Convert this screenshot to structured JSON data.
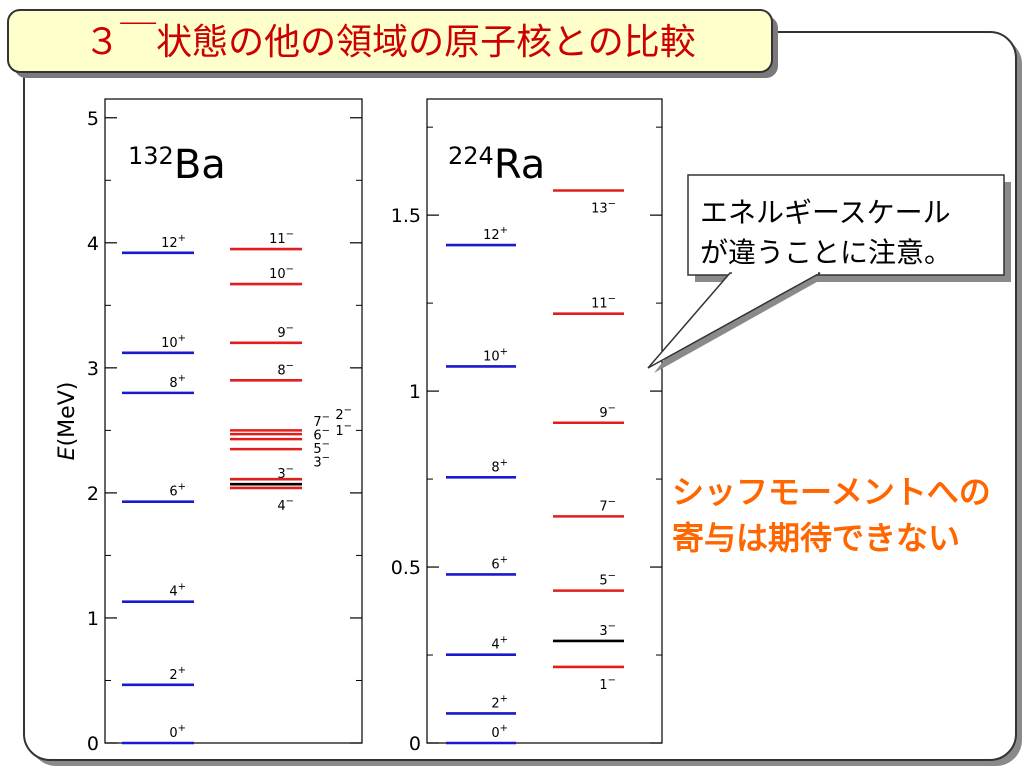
{
  "slide": {
    "title": "３￣状態の他の領域の原子核との比較",
    "callout": "エネルギースケール\nが違うことに注意。",
    "note": "シッフモーメントへの\n寄与は期待できない"
  },
  "colors": {
    "positive_parity": "#1a1acc",
    "negative_parity": "#e01e1e",
    "highlight_level": "#000000",
    "title_fill": "#ffffcc",
    "title_text": "#cc0000",
    "note_text": "#ff6600",
    "frame_border": "#333333"
  },
  "chart_data": [
    {
      "type": "level-scheme",
      "nucleus_mass": "132",
      "nucleus_symbol": "Ba",
      "ylabel_symbol": "E",
      "ylabel_unit": "(MeV)",
      "ylim": [
        0,
        5.15
      ],
      "yticks": [
        0,
        1,
        2,
        3,
        4,
        5
      ],
      "ytick_labels": [
        "0",
        "1",
        "2",
        "3",
        "4",
        "5"
      ],
      "positive_band": {
        "color": "blue",
        "levels": [
          {
            "spin": "0",
            "parity": "+",
            "energy": 0.0
          },
          {
            "spin": "2",
            "parity": "+",
            "energy": 0.465
          },
          {
            "spin": "4",
            "parity": "+",
            "energy": 1.13
          },
          {
            "spin": "6",
            "parity": "+",
            "energy": 1.93
          },
          {
            "spin": "8",
            "parity": "+",
            "energy": 2.8
          },
          {
            "spin": "10",
            "parity": "+",
            "energy": 3.12
          },
          {
            "spin": "12",
            "parity": "+",
            "energy": 3.92
          }
        ]
      },
      "negative_band": {
        "color": "red",
        "levels": [
          {
            "spin": "3",
            "parity": "−",
            "energy": 2.07,
            "color": "black"
          },
          {
            "spin": "4",
            "parity": "−",
            "energy": 2.04
          },
          {
            "spin": "",
            "parity": "",
            "energy": 2.11
          },
          {
            "spin": "",
            "parity": "",
            "energy": 2.35
          },
          {
            "spin": "",
            "parity": "",
            "energy": 2.43
          },
          {
            "spin": "",
            "parity": "",
            "energy": 2.47
          },
          {
            "spin": "",
            "parity": "",
            "energy": 2.5
          },
          {
            "spin": "8",
            "parity": "−",
            "energy": 2.9
          },
          {
            "spin": "9",
            "parity": "−",
            "energy": 3.2
          },
          {
            "spin": "10",
            "parity": "−",
            "energy": 3.67
          },
          {
            "spin": "11",
            "parity": "−",
            "energy": 3.95
          }
        ],
        "side_labels_left": [
          {
            "spin": "7",
            "parity": "−"
          },
          {
            "spin": "6",
            "parity": "−"
          },
          {
            "spin": "5",
            "parity": "−"
          },
          {
            "spin": "3",
            "parity": "−"
          }
        ],
        "side_labels_right": [
          {
            "spin": "2",
            "parity": "−"
          },
          {
            "spin": "1",
            "parity": "−"
          }
        ]
      }
    },
    {
      "type": "level-scheme",
      "nucleus_mass": "224",
      "nucleus_symbol": "Ra",
      "ylim": [
        0,
        1.83
      ],
      "yticks": [
        0,
        0.5,
        1,
        1.5
      ],
      "ytick_labels": [
        "0",
        "0.5",
        "1",
        "1.5"
      ],
      "positive_band": {
        "color": "blue",
        "levels": [
          {
            "spin": "0",
            "parity": "+",
            "energy": 0.0
          },
          {
            "spin": "2",
            "parity": "+",
            "energy": 0.084
          },
          {
            "spin": "4",
            "parity": "+",
            "energy": 0.251
          },
          {
            "spin": "6",
            "parity": "+",
            "energy": 0.479
          },
          {
            "spin": "8",
            "parity": "+",
            "energy": 0.755
          },
          {
            "spin": "10",
            "parity": "+",
            "energy": 1.07
          },
          {
            "spin": "12",
            "parity": "+",
            "energy": 1.415
          }
        ]
      },
      "negative_band": {
        "color": "red",
        "levels": [
          {
            "spin": "1",
            "parity": "−",
            "energy": 0.216
          },
          {
            "spin": "3",
            "parity": "−",
            "energy": 0.29,
            "color": "black"
          },
          {
            "spin": "5",
            "parity": "−",
            "energy": 0.433
          },
          {
            "spin": "7",
            "parity": "−",
            "energy": 0.644
          },
          {
            "spin": "9",
            "parity": "−",
            "energy": 0.91
          },
          {
            "spin": "11",
            "parity": "−",
            "energy": 1.22
          },
          {
            "spin": "13",
            "parity": "−",
            "energy": 1.57
          }
        ]
      }
    }
  ]
}
